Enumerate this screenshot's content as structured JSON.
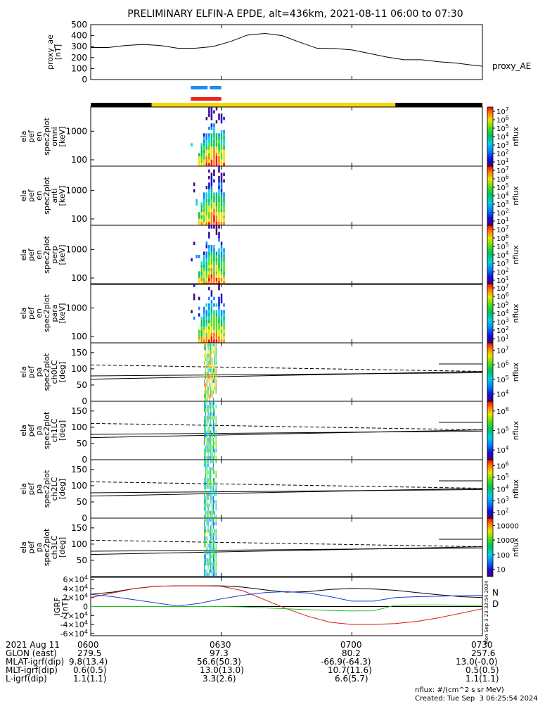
{
  "title": "PRELIMINARY ELFIN-A EPDE, alt=436km, 2021-08-11 06:00 to 07:30",
  "colors": {
    "mission_black": "#000000",
    "mission_yellow": "#f5d800",
    "bar_blue": "#1e8cf0",
    "bar_red": "#e8231a",
    "bt_n": "#000000",
    "bt_blue": "#1a3cd0",
    "bt_green": "#22c022",
    "bt_red": "#d41a1a"
  },
  "time_axis": {
    "start": "06:00",
    "end": "07:30",
    "ticks": [
      "0600",
      "0630",
      "0700",
      "0730"
    ]
  },
  "ephemeris": {
    "labels": [
      "2021 Aug 11",
      "GLON (east)",
      "MLAT-igrf(dip)",
      "MLT-igrf(dip)",
      "L-igrf(dip)"
    ],
    "columns": [
      [
        "0600",
        "279.5",
        "9.8(13.4)",
        "0.6(0.5)",
        "1.1(1.1)"
      ],
      [
        "0630",
        "97.3",
        "56.6(50.3)",
        "13.0(13.0)",
        "3.3(2.6)"
      ],
      [
        "0700",
        "80.2",
        "-66.9(-64.3)",
        "10.7(11.6)",
        "6.6(5.7)"
      ],
      [
        "0730",
        "257.6",
        "13.0(-0.0)",
        "0.5(0.5)",
        "1.1(1.1)"
      ]
    ]
  },
  "footer": {
    "units": "nflux: #/(cm^2 s sr MeV)",
    "created": "Created: Tue Sep  3 06:25:54 2024",
    "side_stamp": "Mon Sep  3 23:32:54 2024"
  },
  "chart_data": [
    {
      "type": "line",
      "panel": "proxy_ae",
      "ylabel": [
        "proxy_ae",
        "[nT]"
      ],
      "legend": "proxy_AE",
      "ylim": [
        0,
        500
      ],
      "yticks": [
        "0",
        "100",
        "200",
        "300",
        "400",
        "500"
      ],
      "x": [
        "06:00",
        "06:04",
        "06:08",
        "06:12",
        "06:16",
        "06:20",
        "06:24",
        "06:28",
        "06:32",
        "06:36",
        "06:40",
        "06:44",
        "06:48",
        "06:52",
        "06:56",
        "07:00",
        "07:04",
        "07:08",
        "07:12",
        "07:16",
        "07:20",
        "07:24",
        "07:28",
        "07:30"
      ],
      "values": [
        292,
        292,
        310,
        320,
        310,
        285,
        285,
        300,
        345,
        405,
        420,
        400,
        340,
        285,
        283,
        270,
        238,
        205,
        180,
        180,
        162,
        150,
        130,
        122
      ]
    },
    {
      "type": "line",
      "panel": "mission_bars",
      "series": [
        {
          "color": "#1e8cf0",
          "segments": [
            [
              "06:23",
              "06:30"
            ]
          ]
        },
        {
          "color": "#e8231a",
          "segments": [
            [
              "06:23",
              "06:30"
            ]
          ]
        }
      ],
      "coverage": [
        [
          "06:00",
          "06:14",
          "black"
        ],
        [
          "06:14",
          "07:10",
          "yellow"
        ],
        [
          "07:10",
          "07:30",
          "black"
        ]
      ]
    },
    {
      "type": "heatmap",
      "panel": "spec_omni",
      "ylabel": [
        "ela",
        "pef",
        "en",
        "spec2plot",
        "omni",
        "[keV]"
      ],
      "yscale": "log",
      "ylim": [
        60,
        7000
      ],
      "yticks": [
        "100",
        "1000"
      ],
      "x_range": [
        "06:23",
        "06:31"
      ],
      "colorbar": {
        "label": "nflux",
        "scale": "log",
        "range": [
          1,
          10000000
        ],
        "ticks": [
          "10^1",
          "10^2",
          "10^3",
          "10^4",
          "10^5",
          "10^6",
          "10^7"
        ]
      }
    },
    {
      "type": "heatmap",
      "panel": "spec_anti",
      "ylabel": [
        "ela",
        "pef",
        "en",
        "spec2plot",
        "anti",
        "[keV]"
      ],
      "yscale": "log",
      "ylim": [
        60,
        7000
      ],
      "yticks": [
        "100",
        "1000"
      ],
      "x_range": [
        "06:23",
        "06:31"
      ],
      "colorbar": {
        "label": "nflux",
        "scale": "log",
        "range": [
          1,
          10000000
        ],
        "ticks": [
          "10^1",
          "10^2",
          "10^3",
          "10^4",
          "10^5",
          "10^6",
          "10^7"
        ]
      }
    },
    {
      "type": "heatmap",
      "panel": "spec_perp",
      "ylabel": [
        "ela",
        "pef",
        "en",
        "spec2plot",
        "perp",
        "[keV]"
      ],
      "yscale": "log",
      "ylim": [
        60,
        7000
      ],
      "yticks": [
        "100",
        "1000"
      ],
      "x_range": [
        "06:23",
        "06:31"
      ],
      "colorbar": {
        "label": "nflux",
        "scale": "log",
        "range": [
          1,
          10000000
        ],
        "ticks": [
          "10^1",
          "10^2",
          "10^3",
          "10^4",
          "10^5",
          "10^6",
          "10^7"
        ]
      }
    },
    {
      "type": "heatmap",
      "panel": "spec_para",
      "ylabel": [
        "ela",
        "pef",
        "en",
        "spec2plot",
        "para",
        "[keV]"
      ],
      "yscale": "log",
      "ylim": [
        60,
        7000
      ],
      "yticks": [
        "100",
        "1000"
      ],
      "x_range": [
        "06:23",
        "06:31"
      ],
      "colorbar": {
        "label": "nflux",
        "scale": "log",
        "range": [
          1,
          10000000
        ],
        "ticks": [
          "10^1",
          "10^2",
          "10^3",
          "10^4",
          "10^5",
          "10^6",
          "10^7"
        ]
      }
    },
    {
      "type": "heatmap",
      "panel": "pa_ch0",
      "ylabel": [
        "ela",
        "pef",
        "pa",
        "spec2plot",
        "ch0LC",
        "[deg]"
      ],
      "ylim": [
        0,
        180
      ],
      "yticks": [
        "0",
        "50",
        "100",
        "150"
      ],
      "x_range": [
        "06:26",
        "06:29"
      ],
      "colorbar": {
        "label": "nflux",
        "scale": "log",
        "range": [
          1000,
          10000000
        ],
        "ticks": [
          "10^4",
          "10^5",
          "10^6",
          "10^7"
        ]
      }
    },
    {
      "type": "heatmap",
      "panel": "pa_ch1",
      "ylabel": [
        "ela",
        "pef",
        "pa",
        "spec2plot",
        "ch1LC",
        "[deg]"
      ],
      "ylim": [
        0,
        180
      ],
      "yticks": [
        "0",
        "50",
        "100",
        "150"
      ],
      "x_range": [
        "06:26",
        "06:29"
      ],
      "colorbar": {
        "label": "nflux",
        "scale": "log",
        "range": [
          1000,
          10000000
        ],
        "ticks": [
          "10^4",
          "10^5",
          "10^6"
        ]
      }
    },
    {
      "type": "heatmap",
      "panel": "pa_ch2",
      "ylabel": [
        "ela",
        "pef",
        "pa",
        "spec2plot",
        "ch2LC",
        "[deg]"
      ],
      "ylim": [
        0,
        180
      ],
      "yticks": [
        "0",
        "50",
        "100",
        "150"
      ],
      "x_range": [
        "06:26",
        "06:29"
      ],
      "colorbar": {
        "label": "nflux",
        "scale": "log",
        "range": [
          100,
          1000000
        ],
        "ticks": [
          "10^2",
          "10^3",
          "10^4",
          "10^5",
          "10^6"
        ]
      }
    },
    {
      "type": "heatmap",
      "panel": "pa_ch3",
      "ylabel": [
        "ela",
        "pef",
        "pa",
        "spec2plot",
        "ch3LC",
        "[deg]"
      ],
      "ylim": [
        0,
        180
      ],
      "yticks": [
        "50",
        "100",
        "150"
      ],
      "x_range": [
        "06:26",
        "06:29"
      ],
      "colorbar": {
        "label": "nflux",
        "scale": "log",
        "range": [
          10,
          10000
        ],
        "ticks": [
          "10",
          "100",
          "1000",
          "10000"
        ]
      }
    },
    {
      "type": "line",
      "panel": "bt",
      "ylabel": [
        "IGRF",
        "[nT]"
      ],
      "ylim": [
        -65000,
        65000
      ],
      "yticks": [
        "6x10^4",
        "4x10^4",
        "2x10^4",
        "0",
        "-2x10^4",
        "-4x10^4",
        "-6x10^4"
      ],
      "legend": [
        "N",
        "D"
      ],
      "x": [
        "06:00",
        "06:05",
        "06:10",
        "06:15",
        "06:20",
        "06:25",
        "06:30",
        "06:35",
        "06:40",
        "06:45",
        "06:50",
        "06:55",
        "07:00",
        "07:05",
        "07:10",
        "07:15",
        "07:20",
        "07:25",
        "07:30"
      ],
      "series": [
        {
          "name": "N",
          "color": "#000000",
          "values": [
            27000,
            32000,
            40000,
            45000,
            46000,
            46000,
            46000,
            43000,
            37000,
            32000,
            33000,
            38000,
            40000,
            39000,
            36000,
            31000,
            26000,
            22000,
            20000
          ]
        },
        {
          "name": "D",
          "color": "#d41a1a",
          "values": [
            20000,
            30000,
            40000,
            45000,
            46000,
            46000,
            45000,
            35000,
            15000,
            -5000,
            -22000,
            -35000,
            -40000,
            -40000,
            -38000,
            -33000,
            -25000,
            -15000,
            -5000
          ]
        },
        {
          "color": "#1a3cd0",
          "values": [
            27000,
            22000,
            15000,
            8000,
            1000,
            7000,
            17000,
            25000,
            31000,
            33000,
            30000,
            22000,
            12000,
            12000,
            20000,
            22000,
            23000,
            24000,
            25000
          ]
        },
        {
          "color": "#22c022",
          "values": [
            0,
            0,
            0,
            0,
            0,
            0,
            0,
            -1000,
            -3000,
            -5000,
            -7000,
            -9000,
            -10000,
            -9500,
            3000,
            3500,
            3500,
            3000,
            2500
          ]
        }
      ]
    }
  ]
}
